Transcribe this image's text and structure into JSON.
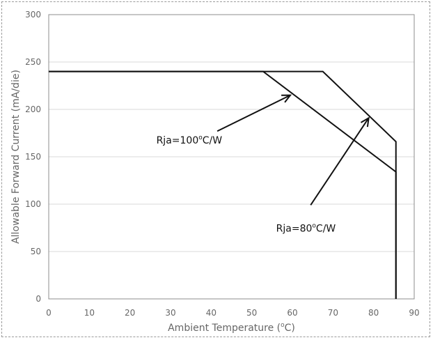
{
  "chart_data": {
    "type": "line",
    "title": "",
    "xlabel": "Ambient Temperature (",
    "xlabel_sup": "o",
    "xlabel_end": "C)",
    "ylabel": "Allowable Forward Current (mA/die)",
    "xlim": [
      0,
      90
    ],
    "ylim": [
      0,
      300
    ],
    "xticks": [
      0,
      10,
      20,
      30,
      40,
      50,
      60,
      70,
      80,
      90
    ],
    "yticks": [
      0,
      50,
      100,
      150,
      200,
      250,
      300
    ],
    "grid": "horizontal",
    "series": [
      {
        "points": [
          [
            0,
            240
          ],
          [
            52.8,
            240
          ],
          [
            85.5,
            134
          ],
          [
            85.5,
            0
          ]
        ]
      },
      {
        "points": [
          [
            0,
            240
          ],
          [
            67.5,
            240
          ],
          [
            85.5,
            166
          ],
          [
            85.5,
            0
          ]
        ]
      }
    ],
    "annotations": [
      {
        "prefix": "Rja=100",
        "sup": "o",
        "suffix": "C/W",
        "text_at": [
          26.5,
          164
        ],
        "arrow_from": [
          41.5,
          177
        ],
        "arrow_to": [
          59.5,
          215
        ]
      },
      {
        "prefix": "Rja=80",
        "sup": "o",
        "suffix": "C/W",
        "text_at": [
          56,
          71
        ],
        "arrow_from": [
          64.5,
          99
        ],
        "arrow_to": [
          78.8,
          191
        ]
      }
    ]
  }
}
